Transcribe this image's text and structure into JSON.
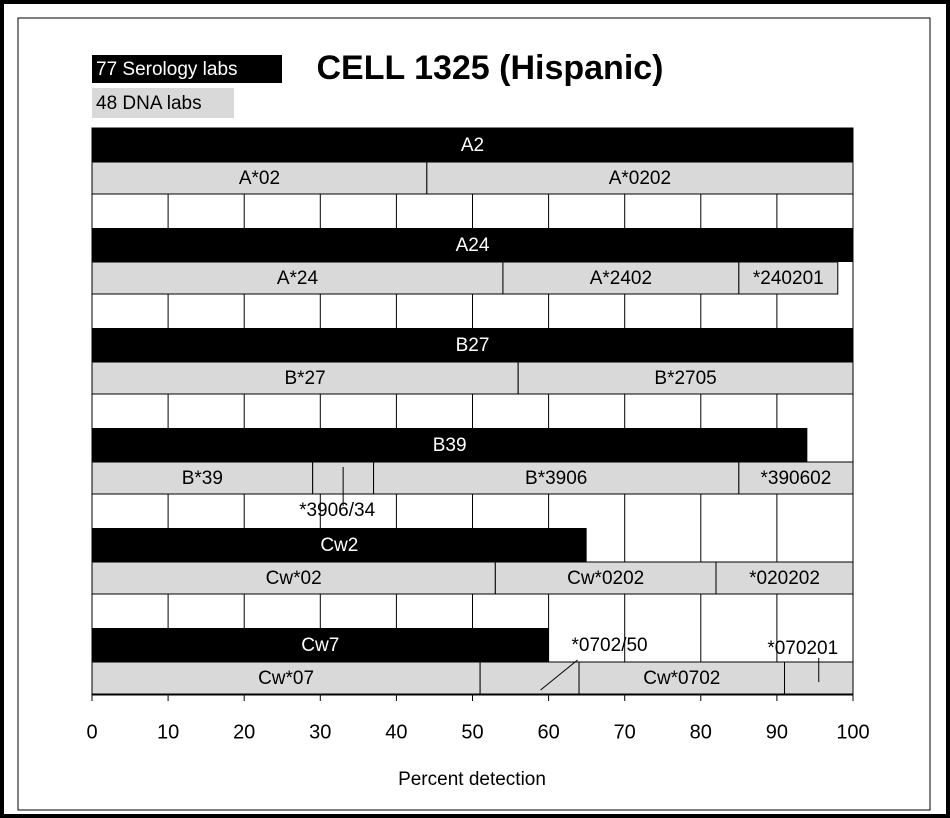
{
  "chart_data": {
    "type": "bar",
    "title": "CELL 1325 (Hispanic)",
    "legend": {
      "serology": "77 Serology labs",
      "dna": "48 DNA labs"
    },
    "serology_color": "#000000",
    "dna_color": "#d9d9d9",
    "xlabel": "Percent detection",
    "xlim": [
      0,
      100
    ],
    "xticks": [
      0,
      10,
      20,
      30,
      40,
      50,
      60,
      70,
      80,
      90,
      100
    ],
    "grid": true,
    "groups": [
      {
        "label": "A2",
        "value": 100,
        "segments": [
          {
            "label": "A*02",
            "value": 44
          },
          {
            "label": "A*0202",
            "value": 56
          }
        ]
      },
      {
        "label": "A24",
        "value": 100,
        "segments": [
          {
            "label": "A*24",
            "value": 54
          },
          {
            "label": "A*2402",
            "value": 31
          },
          {
            "label": "*240201",
            "value": 13
          }
        ]
      },
      {
        "label": "B27",
        "value": 100,
        "segments": [
          {
            "label": "B*27",
            "value": 56
          },
          {
            "label": "B*2705",
            "value": 44
          }
        ]
      },
      {
        "label": "B39",
        "value": 94,
        "segments": [
          {
            "label": "B*39",
            "value": 29
          },
          {
            "label": "*3906/34",
            "value": 8,
            "label_position": "below"
          },
          {
            "label": "B*3906",
            "value": 48
          },
          {
            "label": "*390602",
            "value": 15
          }
        ]
      },
      {
        "label": "Cw2",
        "value": 65,
        "segments": [
          {
            "label": "Cw*02",
            "value": 53
          },
          {
            "label": "Cw*0202",
            "value": 29
          },
          {
            "label": "*020202",
            "value": 18
          }
        ]
      },
      {
        "label": "Cw7",
        "value": 60,
        "segments": [
          {
            "label": "Cw*07",
            "value": 51
          },
          {
            "label": "*0702/50",
            "value": 13,
            "label_position": "above"
          },
          {
            "label": "Cw*0702",
            "value": 27
          },
          {
            "label": "*070201",
            "value": 9,
            "label_position": "above"
          }
        ]
      }
    ]
  }
}
